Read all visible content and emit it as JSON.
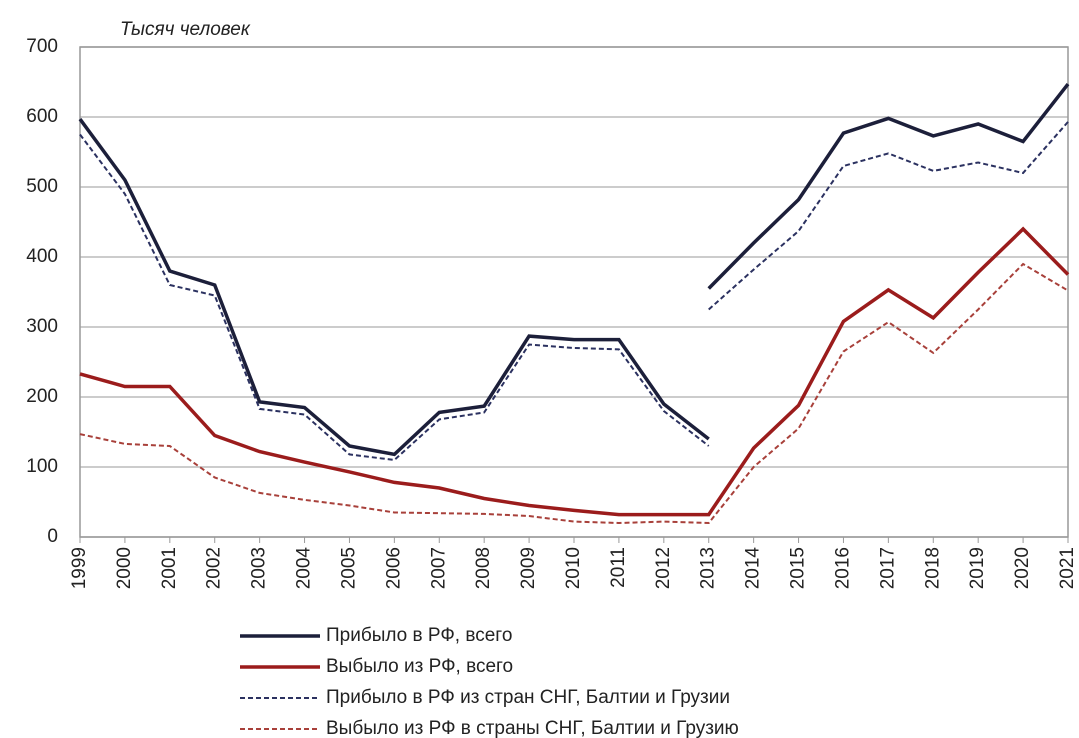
{
  "chart_data": {
    "type": "line",
    "y_label": "Тысяч человек",
    "xlim": [
      1999,
      2021
    ],
    "xticks": [
      1999,
      2000,
      2001,
      2002,
      2003,
      2004,
      2005,
      2006,
      2007,
      2008,
      2009,
      2010,
      2011,
      2012,
      2013,
      2014,
      2015,
      2016,
      2017,
      2018,
      2019,
      2020,
      2021
    ],
    "ylim": [
      0,
      700
    ],
    "yticks": [
      0,
      100,
      200,
      300,
      400,
      500,
      600,
      700
    ],
    "grid": true,
    "series": [
      {
        "name": "Прибыло  в РФ,  всего",
        "color": "#1c1f3a",
        "dash": false,
        "x": [
          1999,
          2000,
          2001,
          2002,
          2003,
          2004,
          2005,
          2006,
          2007,
          2008,
          2009,
          2010,
          2011,
          2012,
          2013,
          null,
          2013,
          2014,
          2015,
          2016,
          2017,
          2018,
          2019,
          2020,
          2021
        ],
        "values": [
          597,
          510,
          380,
          360,
          193,
          185,
          130,
          118,
          178,
          187,
          287,
          282,
          282,
          190,
          140,
          null,
          355,
          420,
          482,
          577,
          598,
          573,
          590,
          565,
          647
        ]
      },
      {
        "name": "Выбыло из РФ,  всего",
        "color": "#9b1c1c",
        "dash": false,
        "x": [
          1999,
          2000,
          2001,
          2002,
          2003,
          2004,
          2005,
          2006,
          2007,
          2008,
          2009,
          2010,
          2011,
          2012,
          2013,
          2014,
          2015,
          2016,
          2017,
          2018,
          2019,
          2020,
          2021
        ],
        "values": [
          233,
          215,
          215,
          145,
          122,
          107,
          93,
          78,
          70,
          55,
          45,
          38,
          32,
          32,
          32,
          127,
          188,
          308,
          353,
          313,
          378,
          440,
          375
        ]
      },
      {
        "name": "Прибыло  в РФ  из стран СНГ,  Балтии и Грузии",
        "color": "#2b3160",
        "dash": true,
        "x": [
          1999,
          2000,
          2001,
          2002,
          2003,
          2004,
          2005,
          2006,
          2007,
          2008,
          2009,
          2010,
          2011,
          2012,
          2013,
          null,
          2013,
          2014,
          2015,
          2016,
          2017,
          2018,
          2019,
          2020,
          2021
        ],
        "values": [
          575,
          490,
          360,
          345,
          183,
          175,
          118,
          110,
          168,
          178,
          275,
          270,
          268,
          180,
          130,
          null,
          325,
          382,
          437,
          530,
          548,
          523,
          535,
          520,
          593
        ]
      },
      {
        "name": "Выбыло из РФ  в страны СНГ,  Балтии и Грузию",
        "color": "#a8403a",
        "dash": true,
        "x": [
          1999,
          2000,
          2001,
          2002,
          2003,
          2004,
          2005,
          2006,
          2007,
          2008,
          2009,
          2010,
          2011,
          2012,
          2013,
          2014,
          2015,
          2016,
          2017,
          2018,
          2019,
          2020,
          2021
        ],
        "values": [
          147,
          133,
          130,
          85,
          63,
          53,
          45,
          35,
          34,
          33,
          30,
          22,
          20,
          22,
          20,
          100,
          155,
          265,
          307,
          263,
          325,
          390,
          352
        ]
      }
    ]
  }
}
